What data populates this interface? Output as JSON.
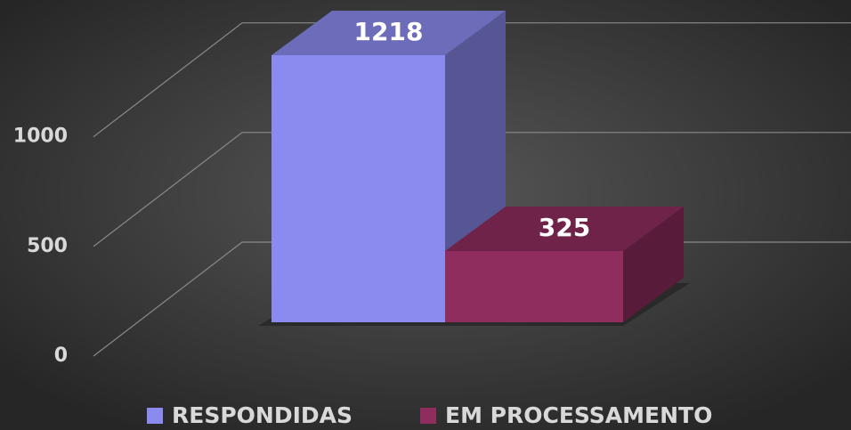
{
  "chart_data": {
    "type": "bar",
    "series": [
      {
        "name": "RESPONDIDAS",
        "color": "#8b8bef",
        "values": [
          1218
        ]
      },
      {
        "name": "EM PROCESSAMENTO",
        "color": "#8e2d5e",
        "values": [
          325
        ]
      }
    ],
    "ylim": [
      0,
      1500
    ],
    "yticks": [
      0,
      500,
      1000
    ],
    "grid": true,
    "legend": "bottom"
  }
}
